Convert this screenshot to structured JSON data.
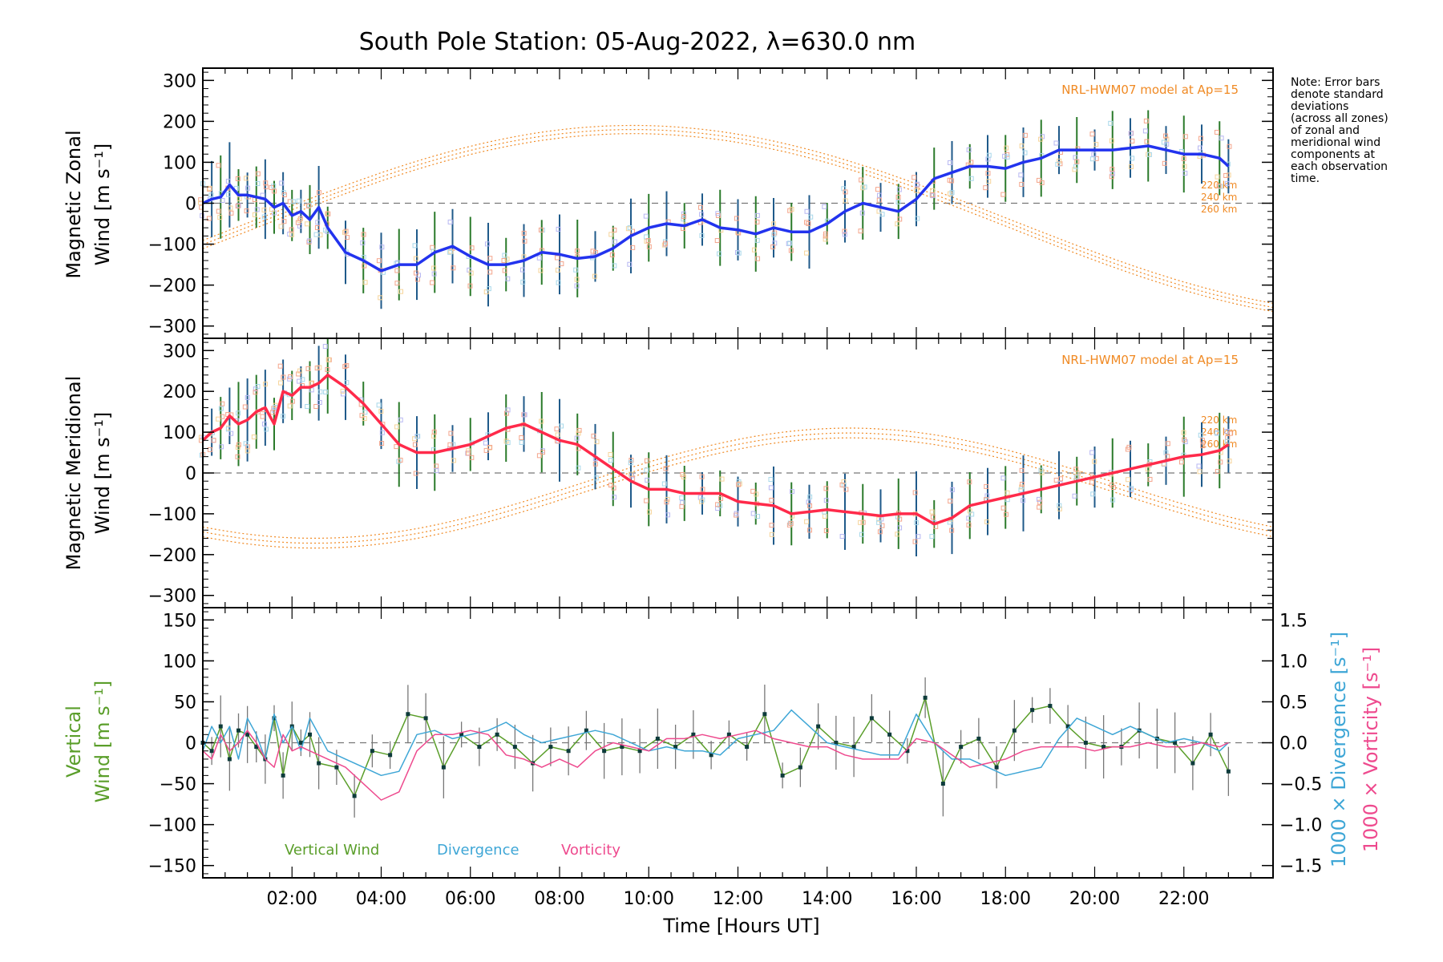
{
  "title": "South Pole Station: 05-Aug-2022, λ=630.0 nm",
  "note_lines": [
    "Note: Error bars",
    "denote standard",
    "deviations",
    "(across all zones)",
    "of zonal and",
    "meridional wind",
    "components at",
    "each observation",
    "time."
  ],
  "xlabel": "Time [Hours UT]",
  "x_tick_labels": [
    "02:00",
    "04:00",
    "06:00",
    "08:00",
    "10:00",
    "12:00",
    "14:00",
    "16:00",
    "18:00",
    "20:00",
    "22:00"
  ],
  "colors": {
    "zonal": "#2233ee",
    "meridional": "#ff2a4a",
    "vertical": "#5a9e2a",
    "divergence": "#3ea6d6",
    "vorticity": "#ee4a8e",
    "model": "#f08a24",
    "errbar_a": "#1f5a8a",
    "errbar_b": "#2a7a2a"
  },
  "chart_data": [
    {
      "id": "zonal",
      "type": "line",
      "ylabel_line1": "Magnetic Zonal",
      "ylabel_line2": "Wind [m s⁻¹]",
      "ylim": [
        -330,
        330
      ],
      "xlim": [
        0,
        24
      ],
      "y_tick_labels": [
        "300",
        "200",
        "100",
        "0",
        "−100",
        "−200",
        "−300"
      ],
      "y_tick_values": [
        300,
        200,
        100,
        0,
        -100,
        -200,
        -300
      ],
      "model_label": "NRL-HWM07 model at Ap=15",
      "model_altitudes": [
        "220 km",
        "240 km",
        "260 km"
      ],
      "series": [
        {
          "name": "Zonal Wind",
          "x": [
            0.0,
            0.2,
            0.4,
            0.6,
            0.8,
            1.0,
            1.2,
            1.4,
            1.6,
            1.8,
            2.0,
            2.2,
            2.4,
            2.6,
            2.8,
            3.2,
            3.6,
            4.0,
            4.4,
            4.8,
            5.2,
            5.6,
            6.0,
            6.4,
            6.8,
            7.2,
            7.6,
            8.0,
            8.4,
            8.8,
            9.2,
            9.6,
            10.0,
            10.4,
            10.8,
            11.2,
            11.6,
            12.0,
            12.4,
            12.8,
            13.2,
            13.6,
            14.0,
            14.4,
            14.8,
            15.2,
            15.6,
            16.0,
            16.4,
            16.8,
            17.2,
            17.6,
            18.0,
            18.4,
            18.8,
            19.2,
            19.6,
            20.0,
            20.4,
            20.8,
            21.2,
            21.6,
            22.0,
            22.4,
            22.8,
            23.0
          ],
          "values": [
            0,
            10,
            15,
            45,
            20,
            20,
            15,
            10,
            -10,
            0,
            -30,
            -20,
            -40,
            -10,
            -60,
            -120,
            -140,
            -165,
            -150,
            -150,
            -120,
            -105,
            -130,
            -150,
            -150,
            -140,
            -120,
            -125,
            -135,
            -130,
            -110,
            -80,
            -60,
            -50,
            -55,
            -40,
            -60,
            -65,
            -75,
            -60,
            -70,
            -70,
            -50,
            -20,
            0,
            -10,
            -20,
            10,
            60,
            75,
            90,
            90,
            85,
            100,
            110,
            130,
            130,
            130,
            130,
            135,
            140,
            130,
            120,
            120,
            110,
            90
          ]
        }
      ]
    },
    {
      "id": "meridional",
      "type": "line",
      "ylabel_line1": "Magnetic Meridional",
      "ylabel_line2": "Wind [m s⁻¹]",
      "ylim": [
        -330,
        330
      ],
      "xlim": [
        0,
        24
      ],
      "y_tick_labels": [
        "300",
        "200",
        "100",
        "0",
        "−100",
        "−200",
        "−300"
      ],
      "y_tick_values": [
        300,
        200,
        100,
        0,
        -100,
        -200,
        -300
      ],
      "model_label": "NRL-HWM07 model at Ap=15",
      "model_altitudes": [
        "220 km",
        "240 km",
        "260 km"
      ],
      "series": [
        {
          "name": "Meridional Wind",
          "x": [
            0.0,
            0.2,
            0.4,
            0.6,
            0.8,
            1.0,
            1.2,
            1.4,
            1.6,
            1.8,
            2.0,
            2.2,
            2.4,
            2.6,
            2.8,
            3.2,
            3.6,
            4.0,
            4.4,
            4.8,
            5.2,
            5.6,
            6.0,
            6.4,
            6.8,
            7.2,
            7.6,
            8.0,
            8.4,
            8.8,
            9.2,
            9.6,
            10.0,
            10.4,
            10.8,
            11.2,
            11.6,
            12.0,
            12.4,
            12.8,
            13.2,
            13.6,
            14.0,
            14.4,
            14.8,
            15.2,
            15.6,
            16.0,
            16.4,
            16.8,
            17.2,
            17.6,
            18.0,
            18.4,
            18.8,
            19.2,
            19.6,
            20.0,
            20.4,
            20.8,
            21.2,
            21.6,
            22.0,
            22.4,
            22.8,
            23.0
          ],
          "values": [
            80,
            100,
            110,
            140,
            120,
            130,
            150,
            160,
            120,
            200,
            190,
            210,
            210,
            220,
            240,
            210,
            170,
            120,
            70,
            50,
            50,
            60,
            70,
            90,
            110,
            120,
            100,
            80,
            70,
            40,
            10,
            -20,
            -40,
            -40,
            -50,
            -50,
            -50,
            -70,
            -75,
            -80,
            -100,
            -95,
            -90,
            -95,
            -100,
            -105,
            -100,
            -100,
            -125,
            -110,
            -80,
            -70,
            -60,
            -50,
            -40,
            -30,
            -20,
            -10,
            0,
            10,
            20,
            30,
            40,
            45,
            55,
            70
          ]
        }
      ]
    },
    {
      "id": "vertical",
      "type": "line",
      "ylabel_line1": "Vertical",
      "ylabel_line2": "Wind [m s⁻¹]",
      "ylim": [
        -165,
        165
      ],
      "xlim": [
        0,
        24
      ],
      "y_tick_labels": [
        "150",
        "100",
        "50",
        "0",
        "−50",
        "−100",
        "−150"
      ],
      "y_tick_values": [
        150,
        100,
        50,
        0,
        -50,
        -100,
        -150
      ],
      "right_ylabel_1": "1000 × Divergence [s⁻¹]",
      "right_ylabel_2": "1000 × Vorticity [s⁻¹]",
      "right_ylim": [
        -1.65,
        1.65
      ],
      "right_tick_labels": [
        "1.5",
        "1.0",
        "0.5",
        "0.0",
        "−0.5",
        "−1.0",
        "−1.5"
      ],
      "right_tick_values": [
        1.5,
        1.0,
        0.5,
        0.0,
        -0.5,
        -1.0,
        -1.5
      ],
      "legend": [
        "Vertical Wind",
        "Divergence",
        "Vorticity"
      ],
      "series": [
        {
          "name": "Vertical Wind",
          "x": [
            0.0,
            0.2,
            0.4,
            0.6,
            0.8,
            1.0,
            1.2,
            1.4,
            1.6,
            1.8,
            2.0,
            2.2,
            2.4,
            2.6,
            3.0,
            3.4,
            3.8,
            4.2,
            4.6,
            5.0,
            5.4,
            5.8,
            6.2,
            6.6,
            7.0,
            7.4,
            7.8,
            8.2,
            8.6,
            9.0,
            9.4,
            9.8,
            10.2,
            10.6,
            11.0,
            11.4,
            11.8,
            12.2,
            12.6,
            13.0,
            13.4,
            13.8,
            14.2,
            14.6,
            15.0,
            15.4,
            15.8,
            16.2,
            16.6,
            17.0,
            17.4,
            17.8,
            18.2,
            18.6,
            19.0,
            19.4,
            19.8,
            20.2,
            20.6,
            21.0,
            21.4,
            21.8,
            22.2,
            22.6,
            23.0
          ],
          "values": [
            0,
            -10,
            20,
            -20,
            15,
            10,
            -5,
            -20,
            30,
            -40,
            20,
            0,
            10,
            -25,
            -30,
            -65,
            -10,
            -15,
            35,
            30,
            -30,
            10,
            -5,
            10,
            -5,
            -25,
            -5,
            -10,
            15,
            -10,
            -5,
            -10,
            5,
            -5,
            10,
            -15,
            10,
            -5,
            35,
            -40,
            -30,
            20,
            0,
            -5,
            30,
            10,
            -10,
            55,
            -50,
            -5,
            5,
            -30,
            15,
            40,
            45,
            20,
            0,
            -5,
            -5,
            15,
            5,
            0,
            -25,
            10,
            -35
          ]
        },
        {
          "name": "Divergence",
          "x": [
            0.0,
            0.2,
            0.4,
            0.6,
            0.8,
            1.0,
            1.2,
            1.4,
            1.6,
            1.8,
            2.0,
            2.2,
            2.4,
            2.8,
            3.2,
            3.6,
            4.0,
            4.4,
            4.8,
            5.2,
            5.6,
            6.0,
            6.4,
            6.8,
            7.2,
            7.6,
            8.0,
            8.4,
            8.8,
            9.2,
            9.6,
            10.0,
            10.4,
            10.8,
            11.2,
            11.6,
            12.0,
            12.4,
            12.8,
            13.2,
            13.6,
            14.0,
            14.4,
            14.8,
            15.2,
            15.6,
            16.0,
            16.4,
            16.8,
            17.2,
            17.6,
            18.0,
            18.4,
            18.8,
            19.2,
            19.6,
            20.0,
            20.4,
            20.8,
            21.2,
            21.6,
            22.0,
            22.4,
            22.8,
            23.0
          ],
          "values": [
            -0.1,
            0.2,
            0.0,
            0.2,
            -0.2,
            0.3,
            0.1,
            -0.2,
            0.35,
            0.0,
            0.2,
            -0.1,
            0.3,
            -0.1,
            -0.2,
            -0.3,
            -0.4,
            -0.35,
            0.1,
            0.15,
            0.05,
            0.1,
            0.15,
            0.25,
            0.1,
            0.0,
            0.05,
            0.1,
            0.15,
            0.1,
            0.0,
            -0.1,
            -0.05,
            -0.1,
            -0.1,
            -0.15,
            0.05,
            0.1,
            0.15,
            0.4,
            0.2,
            0.0,
            -0.05,
            -0.1,
            -0.15,
            -0.15,
            0.35,
            0.0,
            -0.2,
            -0.2,
            -0.3,
            -0.4,
            -0.35,
            -0.3,
            0.05,
            0.3,
            0.2,
            0.1,
            0.2,
            0.1,
            0.0,
            0.05,
            0.0,
            -0.1,
            0.0
          ]
        },
        {
          "name": "Vorticity",
          "x": [
            0.0,
            0.2,
            0.4,
            0.6,
            0.8,
            1.0,
            1.2,
            1.4,
            1.6,
            1.8,
            2.0,
            2.2,
            2.4,
            2.8,
            3.2,
            3.6,
            4.0,
            4.4,
            4.8,
            5.2,
            5.6,
            6.0,
            6.4,
            6.8,
            7.2,
            7.6,
            8.0,
            8.4,
            8.8,
            9.2,
            9.6,
            10.0,
            10.4,
            10.8,
            11.2,
            11.6,
            12.0,
            12.4,
            12.8,
            13.2,
            13.6,
            14.0,
            14.4,
            14.8,
            15.2,
            15.6,
            16.0,
            16.4,
            16.8,
            17.2,
            17.6,
            18.0,
            18.4,
            18.8,
            19.2,
            19.6,
            20.0,
            20.4,
            20.8,
            21.2,
            21.6,
            22.0,
            22.4,
            22.8,
            23.0
          ],
          "values": [
            -0.1,
            -0.2,
            0.1,
            -0.1,
            0.0,
            0.15,
            0.0,
            -0.2,
            -0.3,
            0.1,
            -0.1,
            -0.05,
            -0.1,
            -0.2,
            -0.3,
            -0.5,
            -0.7,
            -0.6,
            -0.1,
            0.1,
            0.1,
            0.15,
            0.1,
            -0.15,
            -0.2,
            -0.3,
            -0.2,
            -0.3,
            -0.1,
            0.0,
            -0.05,
            -0.1,
            0.05,
            0.05,
            0.1,
            0.05,
            0.1,
            0.15,
            0.05,
            0.0,
            -0.05,
            -0.05,
            -0.15,
            -0.2,
            -0.2,
            -0.2,
            0.05,
            0.0,
            -0.15,
            -0.3,
            -0.25,
            -0.2,
            -0.1,
            -0.05,
            -0.05,
            -0.05,
            -0.1,
            -0.05,
            -0.05,
            0.0,
            -0.05,
            -0.05,
            0.0,
            -0.05,
            0.0
          ]
        }
      ]
    }
  ]
}
